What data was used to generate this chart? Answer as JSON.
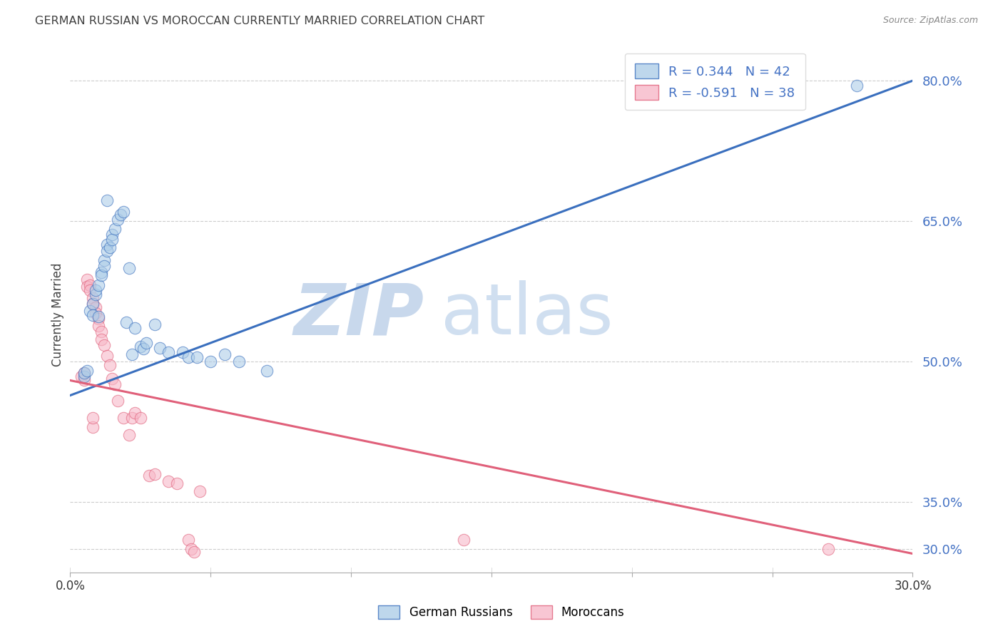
{
  "title": "GERMAN RUSSIAN VS MOROCCAN CURRENTLY MARRIED CORRELATION CHART",
  "source": "Source: ZipAtlas.com",
  "ylabel": "Currently Married",
  "xmin": 0.0,
  "xmax": 0.3,
  "ymin": 0.275,
  "ymax": 0.825,
  "yticks": [
    0.3,
    0.35,
    0.5,
    0.65,
    0.8
  ],
  "ytick_labels": [
    "30.0%",
    "35.0%",
    "50.0%",
    "65.0%",
    "80.0%"
  ],
  "xticks": [
    0.0,
    0.05,
    0.1,
    0.15,
    0.2,
    0.25,
    0.3
  ],
  "xtick_labels": [
    "0.0%",
    "",
    "",
    "",
    "",
    "",
    "30.0%"
  ],
  "blue_label": "German Russians",
  "pink_label": "Moroccans",
  "blue_R": "0.344",
  "blue_N": "42",
  "pink_R": "-0.591",
  "pink_N": "38",
  "blue_color": "#aecde8",
  "pink_color": "#f7b8c8",
  "blue_line_color": "#3a6fbe",
  "pink_line_color": "#e0607a",
  "watermark_zip_color": "#c8d8ec",
  "watermark_atlas_color": "#d0dff0",
  "blue_scatter_x": [
    0.005,
    0.005,
    0.006,
    0.007,
    0.008,
    0.008,
    0.009,
    0.009,
    0.01,
    0.01,
    0.011,
    0.011,
    0.012,
    0.012,
    0.013,
    0.013,
    0.014,
    0.015,
    0.015,
    0.016,
    0.017,
    0.018,
    0.019,
    0.02,
    0.021,
    0.022,
    0.023,
    0.025,
    0.026,
    0.027,
    0.03,
    0.032,
    0.035,
    0.04,
    0.042,
    0.045,
    0.05,
    0.055,
    0.06,
    0.07,
    0.013,
    0.28
  ],
  "blue_scatter_y": [
    0.484,
    0.488,
    0.49,
    0.554,
    0.562,
    0.55,
    0.572,
    0.576,
    0.582,
    0.548,
    0.595,
    0.592,
    0.608,
    0.602,
    0.625,
    0.618,
    0.622,
    0.636,
    0.63,
    0.642,
    0.652,
    0.657,
    0.66,
    0.542,
    0.6,
    0.508,
    0.536,
    0.516,
    0.514,
    0.52,
    0.54,
    0.515,
    0.51,
    0.51,
    0.505,
    0.505,
    0.5,
    0.508,
    0.5,
    0.49,
    0.672,
    0.795
  ],
  "pink_scatter_x": [
    0.004,
    0.005,
    0.005,
    0.006,
    0.006,
    0.007,
    0.007,
    0.008,
    0.008,
    0.009,
    0.009,
    0.01,
    0.01,
    0.011,
    0.011,
    0.012,
    0.013,
    0.014,
    0.015,
    0.016,
    0.017,
    0.019,
    0.021,
    0.022,
    0.023,
    0.025,
    0.028,
    0.03,
    0.035,
    0.038,
    0.042,
    0.043,
    0.044,
    0.046,
    0.14,
    0.27,
    0.008,
    0.008
  ],
  "pink_scatter_y": [
    0.484,
    0.488,
    0.48,
    0.588,
    0.58,
    0.582,
    0.576,
    0.568,
    0.562,
    0.558,
    0.552,
    0.546,
    0.538,
    0.532,
    0.524,
    0.518,
    0.506,
    0.496,
    0.482,
    0.476,
    0.458,
    0.44,
    0.422,
    0.44,
    0.445,
    0.44,
    0.378,
    0.38,
    0.372,
    0.37,
    0.31,
    0.3,
    0.297,
    0.362,
    0.31,
    0.3,
    0.43,
    0.44
  ],
  "blue_trendline_x": [
    0.0,
    0.3
  ],
  "blue_trendline_y": [
    0.464,
    0.8
  ],
  "pink_trendline_x": [
    0.0,
    0.3
  ],
  "pink_trendline_y": [
    0.48,
    0.295
  ],
  "background_color": "#ffffff",
  "grid_color": "#cccccc",
  "tick_color": "#4472c4",
  "title_color": "#404040",
  "figsize": [
    14.06,
    8.92
  ]
}
